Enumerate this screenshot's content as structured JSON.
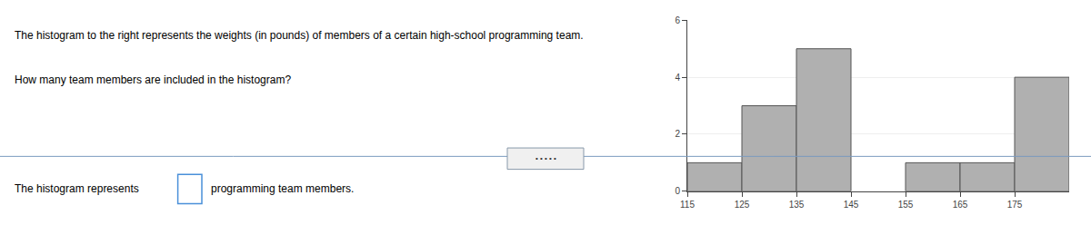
{
  "chart_data": {
    "type": "histogram",
    "bins": [
      115,
      125,
      135,
      145,
      155,
      165,
      175,
      185
    ],
    "values": [
      1,
      3,
      5,
      0,
      1,
      1,
      4
    ],
    "color": "#b0b0b0",
    "xlim": [
      115,
      185
    ],
    "xticks": [
      115,
      125,
      135,
      145,
      155,
      165,
      175
    ],
    "ylim": [
      0,
      6
    ],
    "yticks": [
      0,
      2,
      4,
      6
    ],
    "grid": true,
    "annotations": [
      "The histogram to the right represents the weights (in pounds) of members of a certain high-school programming team.",
      "How many team members are included in the histogram?",
      "The histogram represents",
      "programming team members.",
      "• • • • •"
    ]
  }
}
